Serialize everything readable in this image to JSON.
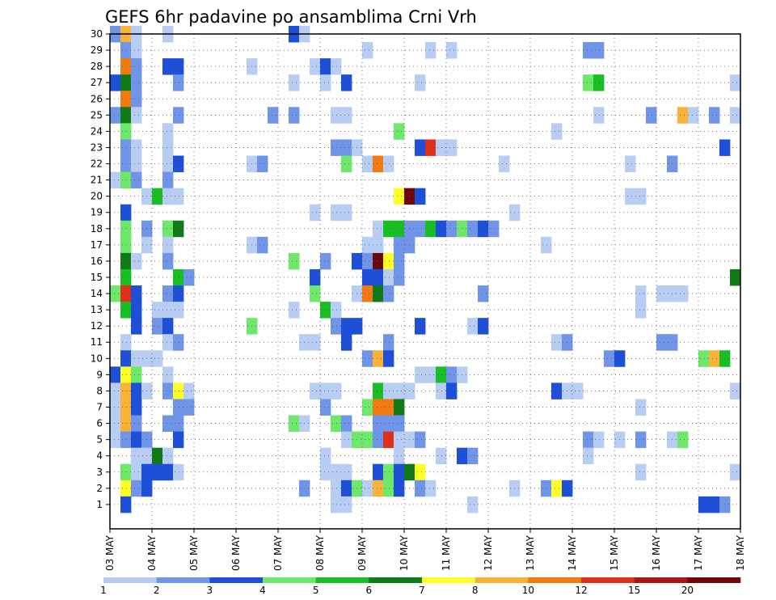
{
  "chart_data": {
    "type": "heatmap",
    "title": "GEFS 6hr padavine po ansamblima Crni Vrh",
    "xlabel": "",
    "ylabel": "",
    "x_tick_labels": [
      "03 MAY",
      "04 MAY",
      "05 MAY",
      "06 MAY",
      "07 MAY",
      "08 MAY",
      "09 MAY",
      "10 MAY",
      "11 MAY",
      "12 MAY",
      "13 MAY",
      "14 MAY",
      "15 MAY",
      "16 MAY",
      "17 MAY",
      "18 MAY"
    ],
    "y_tick_labels": [
      "1",
      "2",
      "3",
      "4",
      "5",
      "6",
      "7",
      "8",
      "9",
      "10",
      "11",
      "12",
      "13",
      "14",
      "15",
      "16",
      "17",
      "18",
      "19",
      "20",
      "21",
      "22",
      "23",
      "24",
      "25",
      "26",
      "27",
      "28",
      "29",
      "30"
    ],
    "y_range": [
      0,
      30
    ],
    "time_steps": 60,
    "grid": true,
    "colorbar": {
      "labels": [
        "1",
        "2",
        "3",
        "4",
        "5",
        "6",
        "7",
        "8",
        "10",
        "12",
        "15",
        "20"
      ],
      "colors": [
        "#b8cdf4",
        "#6f94e8",
        "#1d4fd9",
        "#6de86a",
        "#19bd24",
        "#0f7a16",
        "#ffff28",
        "#f8b238",
        "#f07b12",
        "#e0301c",
        "#a81515",
        "#6e0808"
      ]
    },
    "cells": [
      [
        0,
        30,
        2
      ],
      [
        1,
        30,
        8
      ],
      [
        2,
        30,
        1
      ],
      [
        5,
        30,
        1
      ],
      [
        17,
        30,
        3
      ],
      [
        18,
        30,
        1
      ],
      [
        1,
        29,
        2
      ],
      [
        2,
        29,
        1
      ],
      [
        24,
        29,
        1
      ],
      [
        30,
        29,
        1
      ],
      [
        32,
        29,
        1
      ],
      [
        45,
        29,
        2
      ],
      [
        46,
        29,
        2
      ],
      [
        1,
        28,
        9
      ],
      [
        2,
        28,
        2
      ],
      [
        5,
        28,
        3
      ],
      [
        6,
        28,
        3
      ],
      [
        13,
        28,
        1
      ],
      [
        19,
        28,
        1
      ],
      [
        20,
        28,
        3
      ],
      [
        21,
        28,
        1
      ],
      [
        0,
        27,
        3
      ],
      [
        1,
        27,
        6
      ],
      [
        2,
        27,
        2
      ],
      [
        6,
        27,
        2
      ],
      [
        17,
        27,
        1
      ],
      [
        20,
        27,
        1
      ],
      [
        22,
        27,
        3
      ],
      [
        29,
        27,
        1
      ],
      [
        45,
        27,
        4
      ],
      [
        46,
        27,
        5
      ],
      [
        59,
        27,
        1
      ],
      [
        1,
        26,
        9
      ],
      [
        2,
        26,
        2
      ],
      [
        0,
        25,
        2
      ],
      [
        1,
        25,
        6
      ],
      [
        2,
        25,
        1
      ],
      [
        6,
        25,
        2
      ],
      [
        15,
        25,
        2
      ],
      [
        17,
        25,
        2
      ],
      [
        21,
        25,
        1
      ],
      [
        22,
        25,
        1
      ],
      [
        46,
        25,
        1
      ],
      [
        51,
        25,
        2
      ],
      [
        54,
        25,
        8
      ],
      [
        55,
        25,
        1
      ],
      [
        57,
        25,
        2
      ],
      [
        59,
        25,
        1
      ],
      [
        1,
        24,
        4
      ],
      [
        5,
        24,
        1
      ],
      [
        27,
        24,
        4
      ],
      [
        42,
        24,
        1
      ],
      [
        1,
        23,
        2
      ],
      [
        2,
        23,
        1
      ],
      [
        5,
        23,
        1
      ],
      [
        21,
        23,
        2
      ],
      [
        22,
        23,
        2
      ],
      [
        23,
        23,
        1
      ],
      [
        29,
        23,
        3
      ],
      [
        30,
        23,
        10
      ],
      [
        31,
        23,
        1
      ],
      [
        32,
        23,
        1
      ],
      [
        58,
        23,
        3
      ],
      [
        1,
        22,
        2
      ],
      [
        2,
        22,
        1
      ],
      [
        5,
        22,
        1
      ],
      [
        6,
        22,
        3
      ],
      [
        13,
        22,
        1
      ],
      [
        14,
        22,
        2
      ],
      [
        22,
        22,
        4
      ],
      [
        24,
        22,
        1
      ],
      [
        25,
        22,
        9
      ],
      [
        26,
        22,
        1
      ],
      [
        37,
        22,
        1
      ],
      [
        49,
        22,
        1
      ],
      [
        53,
        22,
        2
      ],
      [
        0,
        21,
        1
      ],
      [
        1,
        21,
        4
      ],
      [
        2,
        21,
        2
      ],
      [
        5,
        21,
        2
      ],
      [
        3,
        20,
        1
      ],
      [
        4,
        20,
        5
      ],
      [
        5,
        20,
        1
      ],
      [
        6,
        20,
        1
      ],
      [
        27,
        20,
        7
      ],
      [
        28,
        20,
        12
      ],
      [
        29,
        20,
        3
      ],
      [
        49,
        20,
        1
      ],
      [
        50,
        20,
        1
      ],
      [
        1,
        19,
        3
      ],
      [
        19,
        19,
        1
      ],
      [
        21,
        19,
        1
      ],
      [
        22,
        19,
        1
      ],
      [
        38,
        19,
        1
      ],
      [
        1,
        18,
        4
      ],
      [
        3,
        18,
        2
      ],
      [
        5,
        18,
        4
      ],
      [
        6,
        18,
        6
      ],
      [
        25,
        18,
        1
      ],
      [
        26,
        18,
        5
      ],
      [
        27,
        18,
        5
      ],
      [
        28,
        18,
        2
      ],
      [
        29,
        18,
        2
      ],
      [
        30,
        18,
        5
      ],
      [
        31,
        18,
        3
      ],
      [
        32,
        18,
        2
      ],
      [
        33,
        18,
        4
      ],
      [
        34,
        18,
        2
      ],
      [
        35,
        18,
        3
      ],
      [
        36,
        18,
        2
      ],
      [
        1,
        17,
        4
      ],
      [
        3,
        17,
        1
      ],
      [
        5,
        17,
        1
      ],
      [
        13,
        17,
        1
      ],
      [
        14,
        17,
        2
      ],
      [
        24,
        17,
        1
      ],
      [
        25,
        17,
        1
      ],
      [
        27,
        17,
        2
      ],
      [
        28,
        17,
        2
      ],
      [
        41,
        17,
        1
      ],
      [
        1,
        16,
        6
      ],
      [
        2,
        16,
        1
      ],
      [
        5,
        16,
        2
      ],
      [
        17,
        16,
        4
      ],
      [
        20,
        16,
        2
      ],
      [
        23,
        16,
        3
      ],
      [
        24,
        16,
        2
      ],
      [
        25,
        16,
        12
      ],
      [
        26,
        16,
        7
      ],
      [
        27,
        16,
        2
      ],
      [
        1,
        15,
        5
      ],
      [
        6,
        15,
        5
      ],
      [
        7,
        15,
        2
      ],
      [
        19,
        15,
        3
      ],
      [
        24,
        15,
        3
      ],
      [
        25,
        15,
        3
      ],
      [
        26,
        15,
        1
      ],
      [
        27,
        15,
        2
      ],
      [
        59,
        15,
        6
      ],
      [
        0,
        14,
        4
      ],
      [
        1,
        14,
        10
      ],
      [
        2,
        14,
        3
      ],
      [
        5,
        14,
        2
      ],
      [
        6,
        14,
        3
      ],
      [
        19,
        14,
        4
      ],
      [
        23,
        14,
        1
      ],
      [
        24,
        14,
        9
      ],
      [
        25,
        14,
        6
      ],
      [
        26,
        14,
        2
      ],
      [
        35,
        14,
        2
      ],
      [
        50,
        14,
        1
      ],
      [
        52,
        14,
        1
      ],
      [
        53,
        14,
        1
      ],
      [
        54,
        14,
        1
      ],
      [
        1,
        13,
        5
      ],
      [
        2,
        13,
        3
      ],
      [
        4,
        13,
        1
      ],
      [
        5,
        13,
        1
      ],
      [
        6,
        13,
        1
      ],
      [
        17,
        13,
        1
      ],
      [
        20,
        13,
        5
      ],
      [
        21,
        13,
        1
      ],
      [
        50,
        13,
        1
      ],
      [
        2,
        12,
        3
      ],
      [
        4,
        12,
        2
      ],
      [
        5,
        12,
        3
      ],
      [
        13,
        12,
        4
      ],
      [
        21,
        12,
        2
      ],
      [
        22,
        12,
        3
      ],
      [
        23,
        12,
        3
      ],
      [
        29,
        12,
        3
      ],
      [
        34,
        12,
        1
      ],
      [
        35,
        12,
        3
      ],
      [
        1,
        11,
        1
      ],
      [
        5,
        11,
        1
      ],
      [
        6,
        11,
        2
      ],
      [
        18,
        11,
        1
      ],
      [
        19,
        11,
        1
      ],
      [
        22,
        11,
        3
      ],
      [
        26,
        11,
        2
      ],
      [
        42,
        11,
        1
      ],
      [
        43,
        11,
        2
      ],
      [
        52,
        11,
        2
      ],
      [
        53,
        11,
        2
      ],
      [
        1,
        10,
        3
      ],
      [
        2,
        10,
        1
      ],
      [
        3,
        10,
        1
      ],
      [
        4,
        10,
        1
      ],
      [
        24,
        10,
        2
      ],
      [
        25,
        10,
        8
      ],
      [
        26,
        10,
        3
      ],
      [
        47,
        10,
        2
      ],
      [
        48,
        10,
        3
      ],
      [
        56,
        10,
        4
      ],
      [
        57,
        10,
        8
      ],
      [
        58,
        10,
        5
      ],
      [
        0,
        9,
        3
      ],
      [
        1,
        9,
        7
      ],
      [
        2,
        9,
        4
      ],
      [
        5,
        9,
        1
      ],
      [
        29,
        9,
        1
      ],
      [
        30,
        9,
        1
      ],
      [
        31,
        9,
        5
      ],
      [
        32,
        9,
        2
      ],
      [
        33,
        9,
        1
      ],
      [
        0,
        8,
        1
      ],
      [
        1,
        8,
        8
      ],
      [
        2,
        8,
        3
      ],
      [
        3,
        8,
        1
      ],
      [
        5,
        8,
        2
      ],
      [
        6,
        8,
        7
      ],
      [
        7,
        8,
        1
      ],
      [
        19,
        8,
        1
      ],
      [
        20,
        8,
        1
      ],
      [
        21,
        8,
        1
      ],
      [
        25,
        8,
        5
      ],
      [
        26,
        8,
        1
      ],
      [
        27,
        8,
        1
      ],
      [
        28,
        8,
        1
      ],
      [
        31,
        8,
        1
      ],
      [
        32,
        8,
        3
      ],
      [
        42,
        8,
        3
      ],
      [
        43,
        8,
        1
      ],
      [
        44,
        8,
        1
      ],
      [
        59,
        8,
        1
      ],
      [
        0,
        7,
        1
      ],
      [
        1,
        7,
        8
      ],
      [
        2,
        7,
        3
      ],
      [
        6,
        7,
        2
      ],
      [
        7,
        7,
        2
      ],
      [
        20,
        7,
        2
      ],
      [
        24,
        7,
        4
      ],
      [
        25,
        7,
        9
      ],
      [
        26,
        7,
        9
      ],
      [
        27,
        7,
        6
      ],
      [
        50,
        7,
        1
      ],
      [
        0,
        6,
        1
      ],
      [
        1,
        6,
        8
      ],
      [
        2,
        6,
        2
      ],
      [
        5,
        6,
        2
      ],
      [
        6,
        6,
        2
      ],
      [
        17,
        6,
        4
      ],
      [
        18,
        6,
        1
      ],
      [
        21,
        6,
        4
      ],
      [
        22,
        6,
        2
      ],
      [
        25,
        6,
        2
      ],
      [
        26,
        6,
        2
      ],
      [
        27,
        6,
        2
      ],
      [
        0,
        5,
        1
      ],
      [
        1,
        5,
        2
      ],
      [
        2,
        5,
        3
      ],
      [
        3,
        5,
        2
      ],
      [
        6,
        5,
        3
      ],
      [
        22,
        5,
        1
      ],
      [
        23,
        5,
        4
      ],
      [
        24,
        5,
        4
      ],
      [
        25,
        5,
        2
      ],
      [
        26,
        5,
        10
      ],
      [
        27,
        5,
        1
      ],
      [
        28,
        5,
        1
      ],
      [
        29,
        5,
        2
      ],
      [
        45,
        5,
        2
      ],
      [
        46,
        5,
        1
      ],
      [
        48,
        5,
        1
      ],
      [
        50,
        5,
        2
      ],
      [
        53,
        5,
        1
      ],
      [
        54,
        5,
        4
      ],
      [
        2,
        4,
        1
      ],
      [
        3,
        4,
        1
      ],
      [
        4,
        4,
        6
      ],
      [
        5,
        4,
        1
      ],
      [
        20,
        4,
        1
      ],
      [
        27,
        4,
        1
      ],
      [
        31,
        4,
        1
      ],
      [
        33,
        4,
        3
      ],
      [
        34,
        4,
        2
      ],
      [
        45,
        4,
        1
      ],
      [
        1,
        3,
        4
      ],
      [
        2,
        3,
        1
      ],
      [
        3,
        3,
        3
      ],
      [
        4,
        3,
        3
      ],
      [
        5,
        3,
        3
      ],
      [
        6,
        3,
        1
      ],
      [
        20,
        3,
        1
      ],
      [
        21,
        3,
        1
      ],
      [
        22,
        3,
        1
      ],
      [
        25,
        3,
        3
      ],
      [
        26,
        3,
        4
      ],
      [
        27,
        3,
        3
      ],
      [
        28,
        3,
        6
      ],
      [
        29,
        3,
        7
      ],
      [
        50,
        3,
        1
      ],
      [
        59,
        3,
        1
      ],
      [
        1,
        2,
        7
      ],
      [
        2,
        2,
        2
      ],
      [
        3,
        2,
        3
      ],
      [
        18,
        2,
        2
      ],
      [
        21,
        2,
        1
      ],
      [
        22,
        2,
        3
      ],
      [
        23,
        2,
        4
      ],
      [
        24,
        2,
        1
      ],
      [
        25,
        2,
        8
      ],
      [
        26,
        2,
        4
      ],
      [
        27,
        2,
        3
      ],
      [
        29,
        2,
        2
      ],
      [
        30,
        2,
        1
      ],
      [
        38,
        2,
        1
      ],
      [
        41,
        2,
        2
      ],
      [
        42,
        2,
        7
      ],
      [
        43,
        2,
        3
      ],
      [
        1,
        1,
        3
      ],
      [
        21,
        1,
        1
      ],
      [
        22,
        1,
        1
      ],
      [
        34,
        1,
        1
      ],
      [
        56,
        1,
        3
      ],
      [
        57,
        1,
        3
      ],
      [
        58,
        1,
        2
      ]
    ]
  }
}
